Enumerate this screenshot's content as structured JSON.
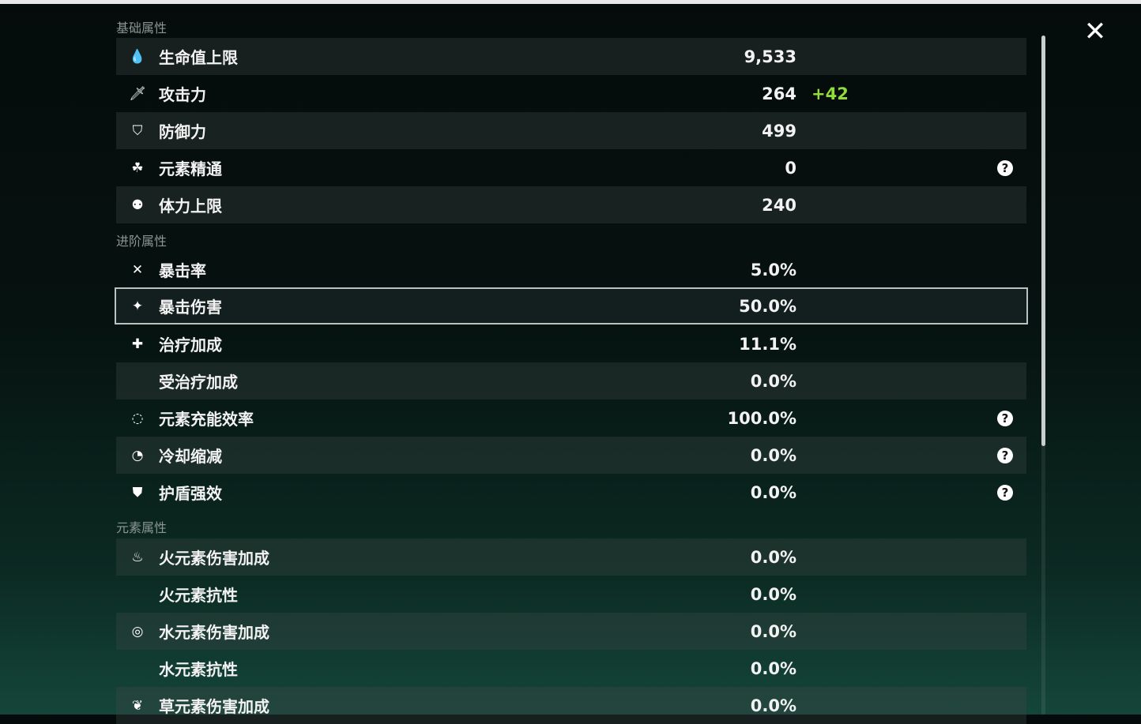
{
  "sections": [
    {
      "title": "基础属性",
      "rows": [
        {
          "icon": "hp-drop-icon",
          "glyph": "💧",
          "label": "生命值上限",
          "value": "9,533"
        },
        {
          "icon": "sword-icon",
          "glyph": "🗡",
          "label": "攻击力",
          "value": "264",
          "bonus": "+42"
        },
        {
          "icon": "shield-icon",
          "glyph": "⛉",
          "label": "防御力",
          "value": "499"
        },
        {
          "icon": "elemental-mastery-icon",
          "glyph": "☘",
          "label": "元素精通",
          "value": "0",
          "help": true
        },
        {
          "icon": "stamina-icon",
          "glyph": "⚉",
          "label": "体力上限",
          "value": "240"
        }
      ]
    },
    {
      "title": "进阶属性",
      "rows": [
        {
          "icon": "crit-rate-icon",
          "glyph": "✕",
          "label": "暴击率",
          "value": "5.0%"
        },
        {
          "icon": "crit-dmg-icon",
          "glyph": "✦",
          "label": "暴击伤害",
          "value": "50.0%",
          "selected": true
        },
        {
          "icon": "healing-icon",
          "glyph": "✚",
          "label": "治疗加成",
          "value": "11.1%"
        },
        {
          "icon": "",
          "glyph": "",
          "label": "受治疗加成",
          "value": "0.0%"
        },
        {
          "icon": "energy-recharge-icon",
          "glyph": "◌",
          "label": "元素充能效率",
          "value": "100.0%",
          "help": true
        },
        {
          "icon": "cooldown-icon",
          "glyph": "◔",
          "label": "冷却缩减",
          "value": "0.0%",
          "help": true
        },
        {
          "icon": "shield-strength-icon",
          "glyph": "⛊",
          "label": "护盾强效",
          "value": "0.0%",
          "help": true
        }
      ]
    },
    {
      "title": "元素属性",
      "rows": [
        {
          "icon": "pyro-icon",
          "glyph": "♨",
          "label": "火元素伤害加成",
          "value": "0.0%"
        },
        {
          "icon": "",
          "glyph": "",
          "label": "火元素抗性",
          "value": "0.0%"
        },
        {
          "icon": "hydro-icon",
          "glyph": "◎",
          "label": "水元素伤害加成",
          "value": "0.0%"
        },
        {
          "icon": "",
          "glyph": "",
          "label": "水元素抗性",
          "value": "0.0%"
        },
        {
          "icon": "dendro-icon",
          "glyph": "❦",
          "label": "草元素伤害加成",
          "value": "0.0%"
        }
      ]
    }
  ],
  "help_glyph": "?",
  "close_glyph": "✕",
  "colors": {
    "bonus": "#8fdc3a",
    "selected_border": "#b9c2c0"
  }
}
